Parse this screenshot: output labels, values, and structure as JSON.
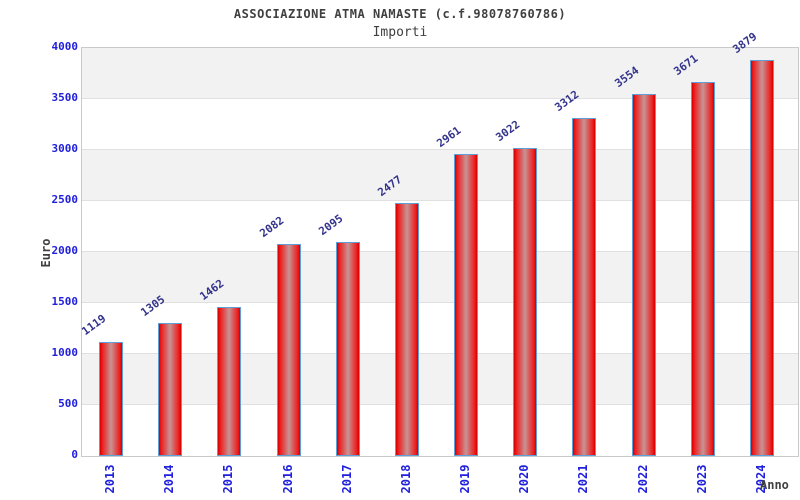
{
  "chart_data": {
    "type": "bar",
    "title": "ASSOCIAZIONE ATMA NAMASTE (c.f.98078760786)",
    "subtitle": "Importi",
    "xlabel": "Anno",
    "ylabel": "Euro",
    "categories": [
      "2013",
      "2014",
      "2015",
      "2016",
      "2017",
      "2018",
      "2019",
      "2020",
      "2021",
      "2022",
      "2023",
      "2024"
    ],
    "values": [
      1119,
      1305,
      1462,
      2082,
      2095,
      2477,
      2961,
      3022,
      3312,
      3554,
      3671,
      3879
    ],
    "ylim": [
      0,
      4000
    ],
    "ytick_step": 500,
    "yticks": [
      0,
      500,
      1000,
      1500,
      2000,
      2500,
      3000,
      3500,
      4000
    ],
    "grid": "horizontal",
    "legend_position": "none",
    "colors": {
      "bar_edge": "#d40000",
      "bar_center": "#c79494",
      "bar_border": "#5e9fd8",
      "tick_label": "#2020dd",
      "value_label": "#33338c",
      "axis_title": "#404040",
      "band_gray": "#f2f2f2",
      "band_white": "#ffffff",
      "grid_line": "#e0e0e0",
      "plot_border": "#c9c9c9"
    }
  }
}
